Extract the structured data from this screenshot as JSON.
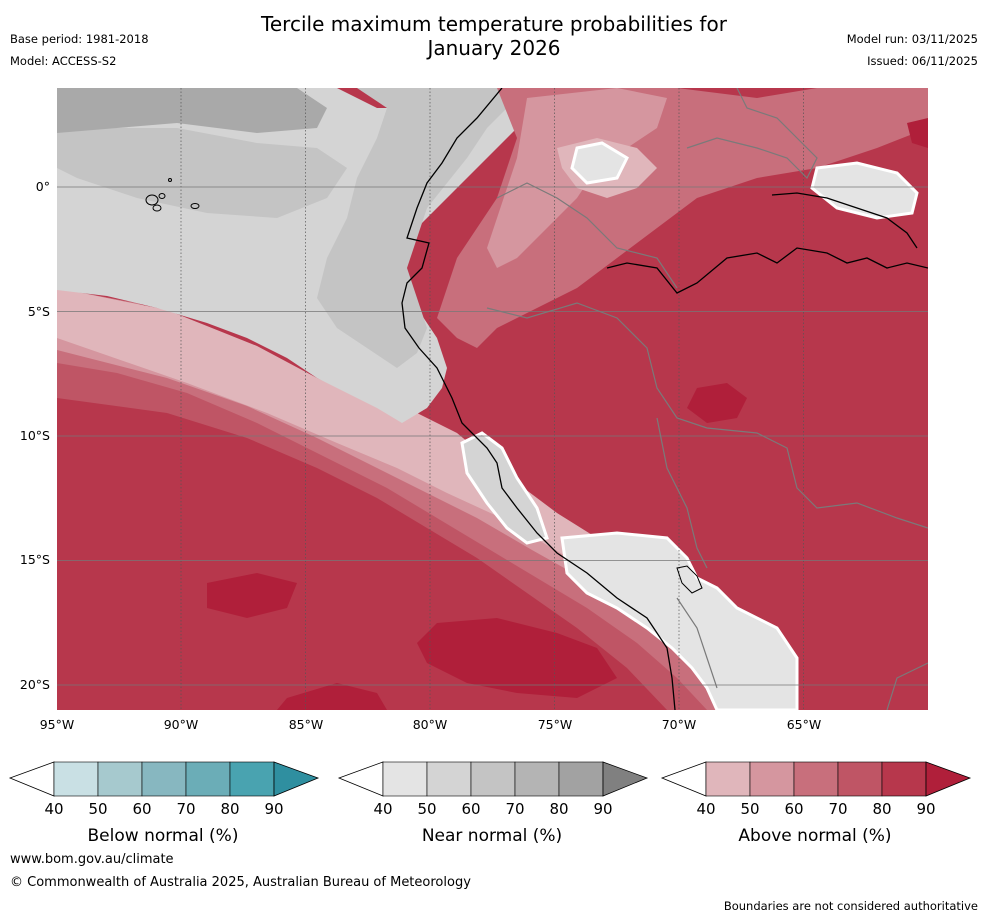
{
  "title_line1": "Tercile maximum temperature probabilities for",
  "title_line2": "January 2026",
  "base_period": "Base period: 1981-2018",
  "model": "Model: ACCESS-S2",
  "model_run": "Model run: 03/11/2025",
  "issued": "Issued: 06/11/2025",
  "lat_labels": [
    "0°",
    "5°S",
    "10°S",
    "15°S",
    "20°S"
  ],
  "lon_labels": [
    "95°W",
    "90°W",
    "85°W",
    "80°W",
    "75°W",
    "70°W",
    "65°W"
  ],
  "colorbars": [
    {
      "label": "Below normal (%)",
      "ticks": [
        "40",
        "50",
        "60",
        "70",
        "80",
        "90"
      ],
      "colors": [
        "#c9e0e4",
        "#a6c9ce",
        "#87b7c0",
        "#6badb7",
        "#49a3b0",
        "#2f8fa0"
      ]
    },
    {
      "label": "Near normal (%)",
      "ticks": [
        "40",
        "50",
        "60",
        "70",
        "80",
        "90"
      ],
      "colors": [
        "#e4e4e4",
        "#d4d4d4",
        "#c4c4c4",
        "#b4b4b4",
        "#a2a2a2",
        "#808080"
      ]
    },
    {
      "label": "Above normal (%)",
      "ticks": [
        "40",
        "50",
        "60",
        "70",
        "80",
        "90"
      ],
      "colors": [
        "#e0b6bb",
        "#d5969f",
        "#c86f7c",
        "#bf5565",
        "#b7374c",
        "#b01f3a"
      ]
    }
  ],
  "website": "www.bom.gov.au/climate",
  "copyright": "© Commonwealth of Australia 2025, Australian Bureau of Meteorology",
  "disclaimer": "Boundaries are not considered authoritative"
}
